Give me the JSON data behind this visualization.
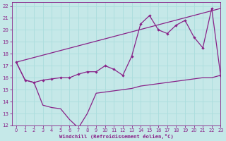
{
  "xlabel": "Windchill (Refroidissement éolien,°C)",
  "xlim": [
    -0.5,
    23
  ],
  "ylim": [
    12,
    22.3
  ],
  "yticks": [
    12,
    13,
    14,
    15,
    16,
    17,
    18,
    19,
    20,
    21,
    22
  ],
  "xticks": [
    0,
    1,
    2,
    3,
    4,
    5,
    6,
    7,
    8,
    9,
    10,
    11,
    12,
    13,
    14,
    15,
    16,
    17,
    18,
    19,
    20,
    21,
    22,
    23
  ],
  "bg_color": "#c5e8e8",
  "line_color": "#882288",
  "grid_color": "#aadddd",
  "line1_x": [
    0,
    1,
    2,
    3,
    4,
    5,
    6,
    7,
    8,
    9,
    10,
    11,
    12,
    13,
    14,
    15,
    16,
    17,
    18,
    19,
    20,
    21,
    22,
    23
  ],
  "line1_y": [
    17.3,
    15.8,
    15.6,
    15.8,
    15.9,
    16.0,
    16.0,
    16.3,
    16.5,
    16.5,
    17.0,
    16.7,
    16.2,
    17.8,
    20.5,
    21.2,
    20.0,
    19.7,
    20.4,
    20.8,
    19.4,
    18.5,
    21.8,
    16.2
  ],
  "line2_x": [
    0,
    23
  ],
  "line2_y": [
    17.3,
    21.8
  ],
  "line3_x": [
    0,
    1,
    2,
    3,
    4,
    5,
    6,
    7,
    8,
    9,
    10,
    11,
    12,
    13,
    14,
    15,
    16,
    17,
    18,
    19,
    20,
    21,
    22,
    23
  ],
  "line3_y": [
    17.3,
    15.8,
    15.6,
    13.7,
    13.5,
    13.4,
    12.5,
    11.8,
    13.0,
    14.7,
    14.8,
    14.9,
    15.0,
    15.1,
    15.3,
    15.4,
    15.5,
    15.6,
    15.7,
    15.8,
    15.9,
    16.0,
    16.0,
    16.2
  ]
}
